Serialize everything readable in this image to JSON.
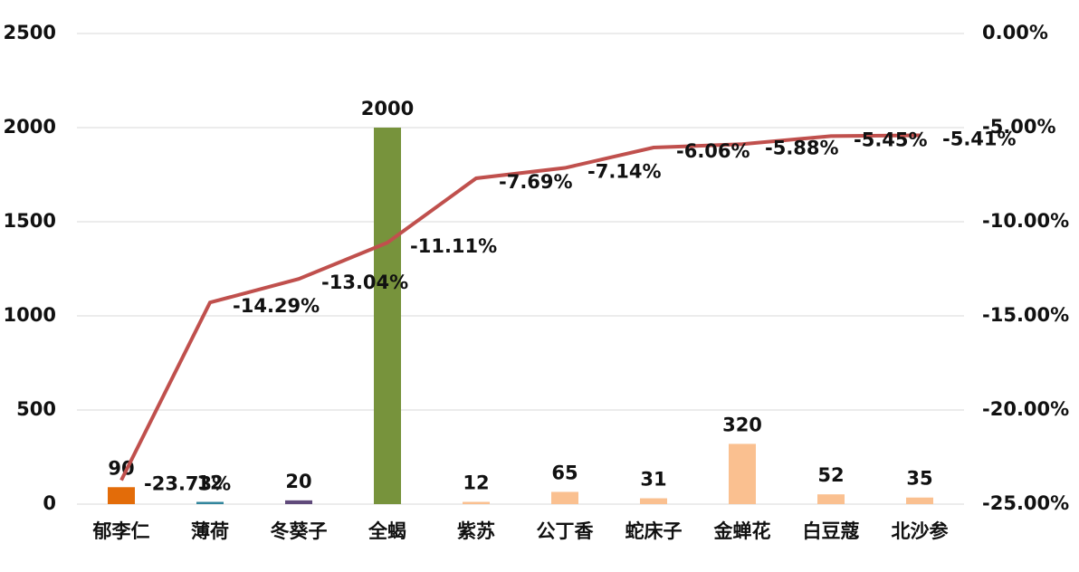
{
  "chart_data": {
    "type": "bar-line",
    "categories": [
      "郁李仁",
      "薄荷",
      "冬葵子",
      "全蝎",
      "紫苏",
      "公丁香",
      "蛇床子",
      "金蝉花",
      "白豆蔻",
      "北沙参"
    ],
    "series": [
      {
        "type": "bar",
        "colors": [
          "#e36c09",
          "#31859c",
          "#604a7b",
          "#77933c",
          "#fac090",
          "#fac090",
          "#fac090",
          "#fac090",
          "#fac090",
          "#fac090"
        ],
        "values": [
          90,
          12,
          20,
          2000,
          12,
          65,
          31,
          320,
          52,
          35
        ]
      },
      {
        "type": "line",
        "axis": "y2",
        "color": "#c0504d",
        "values": [
          -23.73,
          -14.29,
          -13.04,
          -11.11,
          -7.69,
          -7.14,
          -6.06,
          -5.88,
          -5.45,
          -5.41
        ],
        "value_labels": [
          "-23.73%",
          "-14.29%",
          "-13.04%",
          "-11.11%",
          "-7.69%",
          "-7.14%",
          "-6.06%",
          "-5.88%",
          "-5.45%",
          "-5.41%"
        ]
      }
    ],
    "ylim": [
      0,
      2500
    ],
    "yticks": [
      0,
      500,
      1000,
      1500,
      2000,
      2500
    ],
    "y2lim": [
      -25,
      0
    ],
    "y2ticks": [
      {
        "value": -25,
        "label": "-25.00%"
      },
      {
        "value": -20,
        "label": "-20.00%"
      },
      {
        "value": -15,
        "label": "-15.00%"
      },
      {
        "value": -10,
        "label": "-10.00%"
      },
      {
        "value": -5,
        "label": "-5.00%"
      },
      {
        "value": 0,
        "label": "0.00%"
      }
    ],
    "grid": true
  }
}
